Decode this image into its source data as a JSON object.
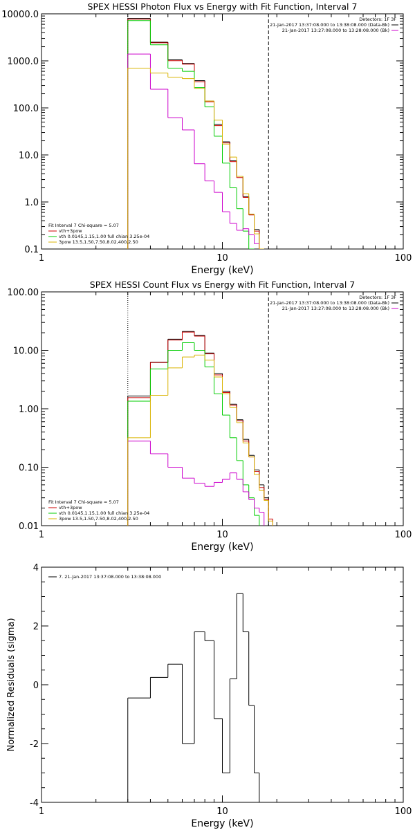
{
  "chart_data": [
    {
      "type": "line",
      "title": "SPEX HESSI Photon Flux vs Energy with Fit Function, Interval 7",
      "xlabel": "Energy (keV)",
      "ylabel": "",
      "xscale": "log",
      "yscale": "log",
      "xlim": [
        1,
        100
      ],
      "ylim": [
        0.1,
        10000
      ],
      "xticks": [
        {
          "v": 1,
          "label": "1"
        },
        {
          "v": 10,
          "label": "10"
        },
        {
          "v": 100,
          "label": "100"
        }
      ],
      "yticks": [
        {
          "v": 0.1,
          "label": "0.1"
        },
        {
          "v": 1,
          "label": "1.0"
        },
        {
          "v": 10,
          "label": "10.0"
        },
        {
          "v": 100,
          "label": "100.0"
        },
        {
          "v": 1000,
          "label": "1000.0"
        },
        {
          "v": 10000,
          "label": "10000.0"
        }
      ],
      "vlines": [
        {
          "x": 3,
          "style": "dotted"
        },
        {
          "x": 18,
          "style": "dashed"
        }
      ],
      "bin_edges": [
        3,
        4,
        5,
        6,
        7,
        8,
        9,
        10,
        11,
        12,
        13,
        14,
        15,
        16,
        17,
        18,
        19
      ],
      "series": [
        {
          "color": "#000000",
          "values": [
            8000,
            2500,
            1050,
            880,
            380,
            140,
            45,
            19,
            7.5,
            3.5,
            1.3,
            0.55,
            0.26,
            null,
            null,
            null
          ]
        },
        {
          "color": "#cc0000",
          "values": [
            7700,
            2420,
            1010,
            850,
            360,
            135,
            42,
            18,
            7.2,
            3.3,
            1.25,
            0.53,
            0.24,
            null,
            null,
            null
          ]
        },
        {
          "color": "#00cc00",
          "values": [
            7200,
            2200,
            700,
            600,
            270,
            105,
            25,
            6.7,
            2,
            0.72,
            0.24,
            0.1,
            null,
            null,
            null,
            null
          ]
        },
        {
          "color": "#cc00cc",
          "values": [
            1400,
            250,
            62,
            34,
            6.5,
            2.8,
            1.6,
            0.62,
            0.35,
            0.25,
            0.27,
            0.2,
            0.13,
            0.1,
            null,
            null
          ]
        },
        {
          "color": "#d9b300",
          "values": [
            700,
            550,
            450,
            420,
            260,
            140,
            55,
            17,
            9,
            3.5,
            1.5,
            0.55,
            0.21,
            0.1,
            null,
            null
          ]
        }
      ],
      "legend": {
        "fit": "Fit Interval 7   Chi-square = 5.07",
        "items": [
          {
            "color": "#cc0000",
            "text": "vth+3pow"
          },
          {
            "color": "#00cc00",
            "text": "vth 0.0145,1.15,1.00  full chian 3.25e-04"
          },
          {
            "color": "#d9b300",
            "text": "3pow  13.5,1.50,7.50,8.02,400,2.50"
          }
        ]
      },
      "info": {
        "detectors": "Detectors: 1F 3F",
        "lines": [
          {
            "color": "#000000",
            "text": "21-Jan-2017 13:37:08.000 to 13:38:08.000 (Data-Bk)"
          },
          {
            "color": "#cc00cc",
            "text": "21-Jan-2017 13:27:08.000 to 13:28:08.000 (Bk)"
          }
        ]
      }
    },
    {
      "type": "line",
      "title": "SPEX HESSI Count Flux vs Energy with Fit Function, Interval 7",
      "xlabel": "Energy (keV)",
      "ylabel": "",
      "xscale": "log",
      "yscale": "log",
      "xlim": [
        1,
        100
      ],
      "ylim": [
        0.01,
        100
      ],
      "xticks": [
        {
          "v": 1,
          "label": "1"
        },
        {
          "v": 10,
          "label": "10"
        },
        {
          "v": 100,
          "label": "100"
        }
      ],
      "yticks": [
        {
          "v": 0.01,
          "label": "0.01"
        },
        {
          "v": 0.1,
          "label": "0.10"
        },
        {
          "v": 1,
          "label": "1.00"
        },
        {
          "v": 10,
          "label": "10.00"
        },
        {
          "v": 100,
          "label": "100.00"
        }
      ],
      "vlines": [
        {
          "x": 3,
          "style": "dotted"
        },
        {
          "x": 18,
          "style": "dashed"
        }
      ],
      "bin_edges": [
        3,
        4,
        5,
        6,
        7,
        8,
        9,
        10,
        11,
        12,
        13,
        14,
        15,
        16,
        17,
        18,
        19
      ],
      "series": [
        {
          "color": "#000000",
          "values": [
            1.65,
            6.3,
            15.5,
            21,
            18,
            9,
            4,
            2,
            1.2,
            0.65,
            0.3,
            0.16,
            0.09,
            0.05,
            0.03,
            null
          ]
        },
        {
          "color": "#cc0000",
          "values": [
            1.55,
            6.2,
            15,
            20.5,
            17.5,
            8.7,
            3.8,
            1.9,
            1.15,
            0.62,
            0.28,
            0.15,
            0.085,
            0.045,
            0.028,
            0.013
          ]
        },
        {
          "color": "#00cc00",
          "values": [
            1.35,
            4.8,
            10,
            13.5,
            10,
            5.2,
            1.8,
            0.78,
            0.32,
            0.13,
            0.05,
            0.03,
            0.015,
            null,
            null,
            null
          ]
        },
        {
          "color": "#cc00cc",
          "values": [
            0.28,
            0.17,
            0.1,
            0.065,
            0.053,
            0.047,
            0.055,
            0.062,
            0.08,
            0.062,
            0.038,
            0.028,
            0.02,
            0.017,
            null,
            null
          ]
        },
        {
          "color": "#d9b300",
          "values": [
            0.32,
            1.7,
            5,
            7.7,
            8.3,
            6.8,
            3.5,
            1.8,
            1.05,
            0.58,
            0.26,
            0.15,
            0.075,
            0.04,
            0.027,
            0.012
          ]
        }
      ],
      "legend": {
        "fit": "Fit Interval 7   Chi-square = 5.07",
        "items": [
          {
            "color": "#cc0000",
            "text": "vth+3pow"
          },
          {
            "color": "#00cc00",
            "text": "vth 0.0145,1.15,1.00  full chian 3.25e-04"
          },
          {
            "color": "#d9b300",
            "text": "3pow  13.5,1.50,7.50,8.02,400,2.50"
          }
        ]
      },
      "info": {
        "detectors": "Detectors: 1F 3F",
        "lines": [
          {
            "color": "#000000",
            "text": "21-Jan-2017 13:37:08.000 to 13:38:08.000 (Data-Bk)"
          },
          {
            "color": "#cc00cc",
            "text": "21-Jan-2017 13:27:08.000 to 13:28:08.000 (Bk)"
          }
        ]
      }
    },
    {
      "type": "line",
      "title": "",
      "xlabel": "Energy (keV)",
      "ylabel": "Normalized Residuals (sigma)",
      "xscale": "log",
      "yscale": "linear",
      "xlim": [
        1,
        100
      ],
      "ylim": [
        -4,
        4
      ],
      "xticks": [
        {
          "v": 1,
          "label": "1"
        },
        {
          "v": 10,
          "label": "10"
        },
        {
          "v": 100,
          "label": "100"
        }
      ],
      "yticks": [
        {
          "v": -4,
          "label": "-4"
        },
        {
          "v": -2,
          "label": "-2"
        },
        {
          "v": 0,
          "label": "0"
        },
        {
          "v": 2,
          "label": "2"
        },
        {
          "v": 4,
          "label": "4"
        }
      ],
      "vlines": [],
      "bin_edges": [
        3,
        4,
        5,
        6,
        7,
        8,
        9,
        10,
        11,
        12,
        13,
        14,
        15,
        16,
        17,
        18,
        19
      ],
      "series": [
        {
          "color": "#000000",
          "values": [
            -0.45,
            0.25,
            0.7,
            -2,
            1.8,
            1.5,
            -1.15,
            -3,
            0.2,
            3.1,
            1.8,
            -0.7,
            -3,
            null,
            null,
            null
          ]
        }
      ],
      "legend": {
        "fit": "",
        "items": [
          {
            "color": "#000000",
            "text": "7. 21-Jan-2017 13:37:08.000 to 13:38:08.000"
          }
        ]
      },
      "info": {
        "detectors": "",
        "lines": []
      }
    }
  ]
}
